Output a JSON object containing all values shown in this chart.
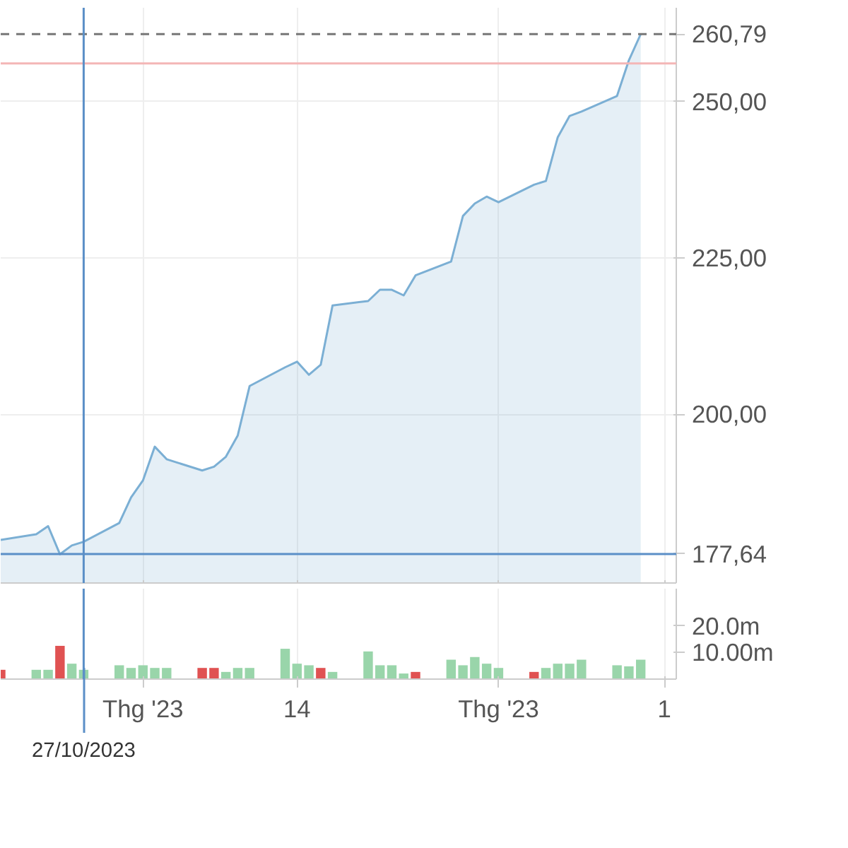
{
  "chart_data": [
    {
      "type": "area",
      "color": "#7bafd4",
      "x": [
        "2023-10-20",
        "2023-10-23",
        "2023-10-24",
        "2023-10-25",
        "2023-10-26",
        "2023-10-27",
        "2023-10-30",
        "2023-10-31",
        "2023-11-01",
        "2023-11-02",
        "2023-11-03",
        "2023-11-06",
        "2023-11-07",
        "2023-11-08",
        "2023-11-09",
        "2023-11-10",
        "2023-11-13",
        "2023-11-14",
        "2023-11-15",
        "2023-11-16",
        "2023-11-17",
        "2023-11-20",
        "2023-11-21",
        "2023-11-22",
        "2023-11-23",
        "2023-11-24",
        "2023-11-27",
        "2023-11-28",
        "2023-11-29",
        "2023-11-30",
        "2023-12-01",
        "2023-12-04",
        "2023-12-05",
        "2023-12-06",
        "2023-12-07",
        "2023-12-08",
        "2023-12-11",
        "2023-12-12",
        "2023-12-13"
      ],
      "values": [
        179.9,
        180.8,
        182.1,
        177.6,
        179.0,
        179.6,
        182.6,
        186.7,
        189.4,
        194.8,
        192.8,
        191.0,
        191.6,
        193.2,
        196.6,
        204.5,
        207.5,
        208.4,
        206.3,
        207.9,
        217.4,
        218.1,
        219.9,
        219.9,
        219.0,
        222.2,
        224.4,
        231.7,
        233.7,
        234.8,
        233.9,
        236.7,
        237.3,
        244.3,
        247.7,
        248.4,
        250.9,
        256.6,
        260.79
      ],
      "xlim": [
        "2023-10-20",
        "2023-12-16"
      ],
      "xticks": [
        {
          "value": "2023-11-01",
          "label": null
        },
        {
          "value": "2023-11-14",
          "label": null
        },
        {
          "value": "2023-12-01",
          "label": null
        },
        {
          "value": "2023-12-15",
          "label": null
        }
      ],
      "ylim": [
        173,
        265
      ],
      "yticks": [
        {
          "value": 200,
          "label": "200,00"
        },
        {
          "value": 225,
          "label": "225,00"
        },
        {
          "value": 250,
          "label": "250,00"
        }
      ],
      "tick_labels": "y",
      "grid": true,
      "ref_lines": [
        {
          "axis": "y",
          "value": 260.79,
          "label": "260,79",
          "color": "#777777",
          "line_style": "dashed"
        },
        {
          "axis": "y",
          "value": 256.1,
          "label": null,
          "color": "#f4b6b6",
          "line_style": "solid"
        },
        {
          "axis": "y",
          "value": 177.64,
          "label": "177,64",
          "color": "#5b8fc7",
          "line_style": "solid"
        },
        {
          "axis": "x",
          "value": "2023-10-27",
          "label": null,
          "color": "#5b8fc7",
          "line_style": "solid"
        }
      ]
    },
    {
      "type": "bar",
      "x": [
        "2023-10-20",
        "2023-10-23",
        "2023-10-24",
        "2023-10-25",
        "2023-10-26",
        "2023-10-27",
        "2023-10-30",
        "2023-10-31",
        "2023-11-01",
        "2023-11-02",
        "2023-11-03",
        "2023-11-06",
        "2023-11-07",
        "2023-11-08",
        "2023-11-09",
        "2023-11-10",
        "2023-11-13",
        "2023-11-14",
        "2023-11-15",
        "2023-11-16",
        "2023-11-17",
        "2023-11-20",
        "2023-11-21",
        "2023-11-22",
        "2023-11-23",
        "2023-11-24",
        "2023-11-27",
        "2023-11-28",
        "2023-11-29",
        "2023-11-30",
        "2023-12-01",
        "2023-12-04",
        "2023-12-05",
        "2023-12-06",
        "2023-12-07",
        "2023-12-08",
        "2023-12-11",
        "2023-12-12",
        "2023-12-13"
      ],
      "values": [
        3.5,
        3.5,
        3.5,
        12.5,
        5.8,
        3.5,
        5.2,
        4.2,
        5.2,
        4.2,
        4.2,
        4.2,
        4.2,
        2.7,
        4.2,
        4.2,
        11.4,
        5.8,
        5.2,
        4.2,
        2.7,
        10.4,
        5.2,
        5.2,
        2.1,
        2.7,
        7.3,
        5.2,
        8.3,
        5.8,
        4.2,
        2.7,
        4.2,
        5.8,
        5.8,
        7.3,
        5.2,
        4.8,
        7.3
      ],
      "colors": [
        "#e05252",
        "#99d5aa",
        "#99d5aa",
        "#e05252",
        "#99d5aa",
        "#99d5aa",
        "#99d5aa",
        "#99d5aa",
        "#99d5aa",
        "#99d5aa",
        "#99d5aa",
        "#e05252",
        "#e05252",
        "#99d5aa",
        "#99d5aa",
        "#99d5aa",
        "#99d5aa",
        "#99d5aa",
        "#99d5aa",
        "#e05252",
        "#99d5aa",
        "#99d5aa",
        "#99d5aa",
        "#99d5aa",
        "#99d5aa",
        "#e05252",
        "#99d5aa",
        "#99d5aa",
        "#99d5aa",
        "#99d5aa",
        "#99d5aa",
        "#e05252",
        "#99d5aa",
        "#99d5aa",
        "#99d5aa",
        "#99d5aa",
        "#99d5aa",
        "#99d5aa",
        "#99d5aa"
      ],
      "xlim": [
        "2023-10-20",
        "2023-12-16"
      ],
      "xticks": [
        {
          "value": "2023-11-01",
          "label": "Thg '23"
        },
        {
          "value": "2023-11-14",
          "label": "14"
        },
        {
          "value": "2023-12-01",
          "label": "Thg '23"
        },
        {
          "value": "2023-12-15",
          "label": "1"
        }
      ],
      "ylim": [
        0,
        34
      ],
      "yticks": [
        {
          "value": 10,
          "label": "10.00m"
        },
        {
          "value": 20,
          "label": "20.0m"
        }
      ],
      "grid": "x",
      "ref_lines": [
        {
          "axis": "x",
          "value": "2023-10-27",
          "label": "27/10/2023",
          "color": "#5b8fc7",
          "line_style": "solid"
        }
      ]
    }
  ]
}
